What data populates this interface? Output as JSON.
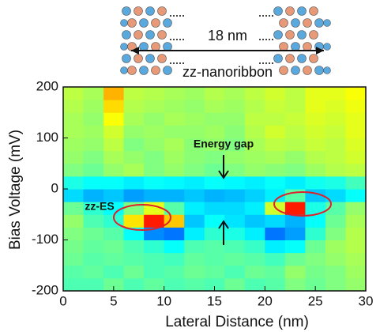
{
  "chart_data": {
    "type": "heatmap",
    "diagram_length_label": "18 nm",
    "diagram_label": "zz-nanoribbon",
    "annotations": [
      "Energy gap",
      "zz-ES"
    ],
    "x_label": "Lateral Distance (nm)",
    "y_label": "Bias Voltage (mV)",
    "xlim": [
      0,
      30
    ],
    "xticks": [
      0,
      5,
      10,
      15,
      20,
      25,
      30
    ],
    "ylim": [
      -200,
      200
    ],
    "yticks": [
      -200,
      -100,
      0,
      100,
      200
    ],
    "colormap": "jet",
    "zlim": [
      0,
      10
    ],
    "x": [
      1,
      3,
      5,
      7,
      9,
      11,
      13,
      15,
      17,
      19,
      21,
      23,
      25,
      27,
      29
    ],
    "y": [
      -187.5,
      -162.5,
      -137.5,
      -112.5,
      -87.5,
      -62.5,
      -37.5,
      -12.5,
      12.5,
      37.5,
      62.5,
      87.5,
      112.5,
      137.5,
      162.5,
      187.5
    ],
    "values": [
      [
        4.5,
        4.5,
        4.8,
        4.5,
        4.7,
        4.5,
        4.6,
        4.5,
        4.8,
        4.5,
        4.6,
        5.0,
        4.8,
        5.0,
        5.2
      ],
      [
        4.6,
        4.7,
        4.5,
        4.8,
        4.5,
        4.6,
        4.8,
        4.7,
        4.5,
        4.8,
        4.7,
        5.2,
        4.9,
        5.0,
        5.3
      ],
      [
        4.8,
        4.6,
        4.7,
        4.6,
        4.5,
        4.4,
        4.7,
        4.6,
        4.7,
        4.6,
        4.4,
        4.8,
        5.0,
        5.2,
        5.4
      ],
      [
        4.9,
        4.7,
        4.8,
        4.5,
        4.2,
        3.8,
        4.5,
        4.6,
        4.5,
        4.3,
        3.6,
        3.8,
        4.8,
        5.3,
        5.5
      ],
      [
        5.0,
        4.8,
        4.6,
        3.8,
        2.6,
        2.4,
        3.6,
        4.2,
        4.0,
        3.6,
        2.4,
        2.8,
        4.2,
        5.0,
        5.5
      ],
      [
        5.2,
        4.5,
        4.2,
        6.5,
        8.5,
        6.8,
        3.2,
        3.8,
        3.5,
        3.2,
        3.4,
        3.0,
        3.8,
        4.8,
        5.4
      ],
      [
        4.8,
        4.2,
        3.8,
        5.0,
        6.0,
        4.6,
        3.6,
        3.4,
        3.4,
        3.6,
        5.8,
        8.5,
        4.0,
        4.6,
        5.2
      ],
      [
        3.4,
        3.0,
        3.2,
        2.8,
        3.0,
        3.0,
        3.2,
        3.0,
        3.1,
        3.3,
        3.6,
        4.6,
        3.2,
        3.4,
        3.8
      ],
      [
        4.0,
        3.8,
        3.8,
        3.6,
        3.8,
        3.7,
        3.6,
        3.8,
        3.7,
        3.6,
        3.8,
        3.6,
        3.9,
        4.0,
        4.4
      ],
      [
        5.0,
        4.8,
        5.2,
        5.4,
        5.0,
        5.2,
        5.0,
        4.8,
        5.0,
        5.2,
        5.1,
        5.0,
        5.3,
        5.5,
        5.6
      ],
      [
        5.2,
        5.0,
        5.4,
        5.2,
        5.0,
        5.3,
        5.1,
        5.0,
        5.2,
        5.3,
        5.4,
        5.2,
        5.5,
        5.6,
        5.8
      ],
      [
        5.3,
        5.2,
        5.6,
        5.0,
        5.2,
        5.4,
        5.1,
        5.2,
        5.0,
        5.4,
        5.6,
        5.5,
        5.7,
        5.6,
        5.9
      ],
      [
        5.4,
        5.3,
        5.8,
        5.2,
        5.3,
        5.2,
        5.2,
        5.3,
        5.1,
        5.5,
        5.8,
        5.6,
        5.8,
        5.7,
        6.0
      ],
      [
        5.4,
        5.2,
        6.2,
        5.4,
        5.2,
        5.4,
        5.3,
        5.2,
        5.2,
        5.6,
        5.6,
        5.7,
        5.9,
        5.8,
        6.0
      ],
      [
        5.5,
        5.3,
        6.6,
        5.5,
        5.4,
        5.3,
        5.2,
        5.4,
        5.3,
        5.5,
        5.7,
        5.6,
        6.0,
        5.9,
        6.1
      ],
      [
        5.6,
        5.4,
        7.0,
        5.6,
        5.5,
        5.4,
        5.3,
        5.5,
        5.4,
        5.6,
        5.8,
        5.6,
        6.0,
        6.0,
        6.2
      ]
    ]
  }
}
